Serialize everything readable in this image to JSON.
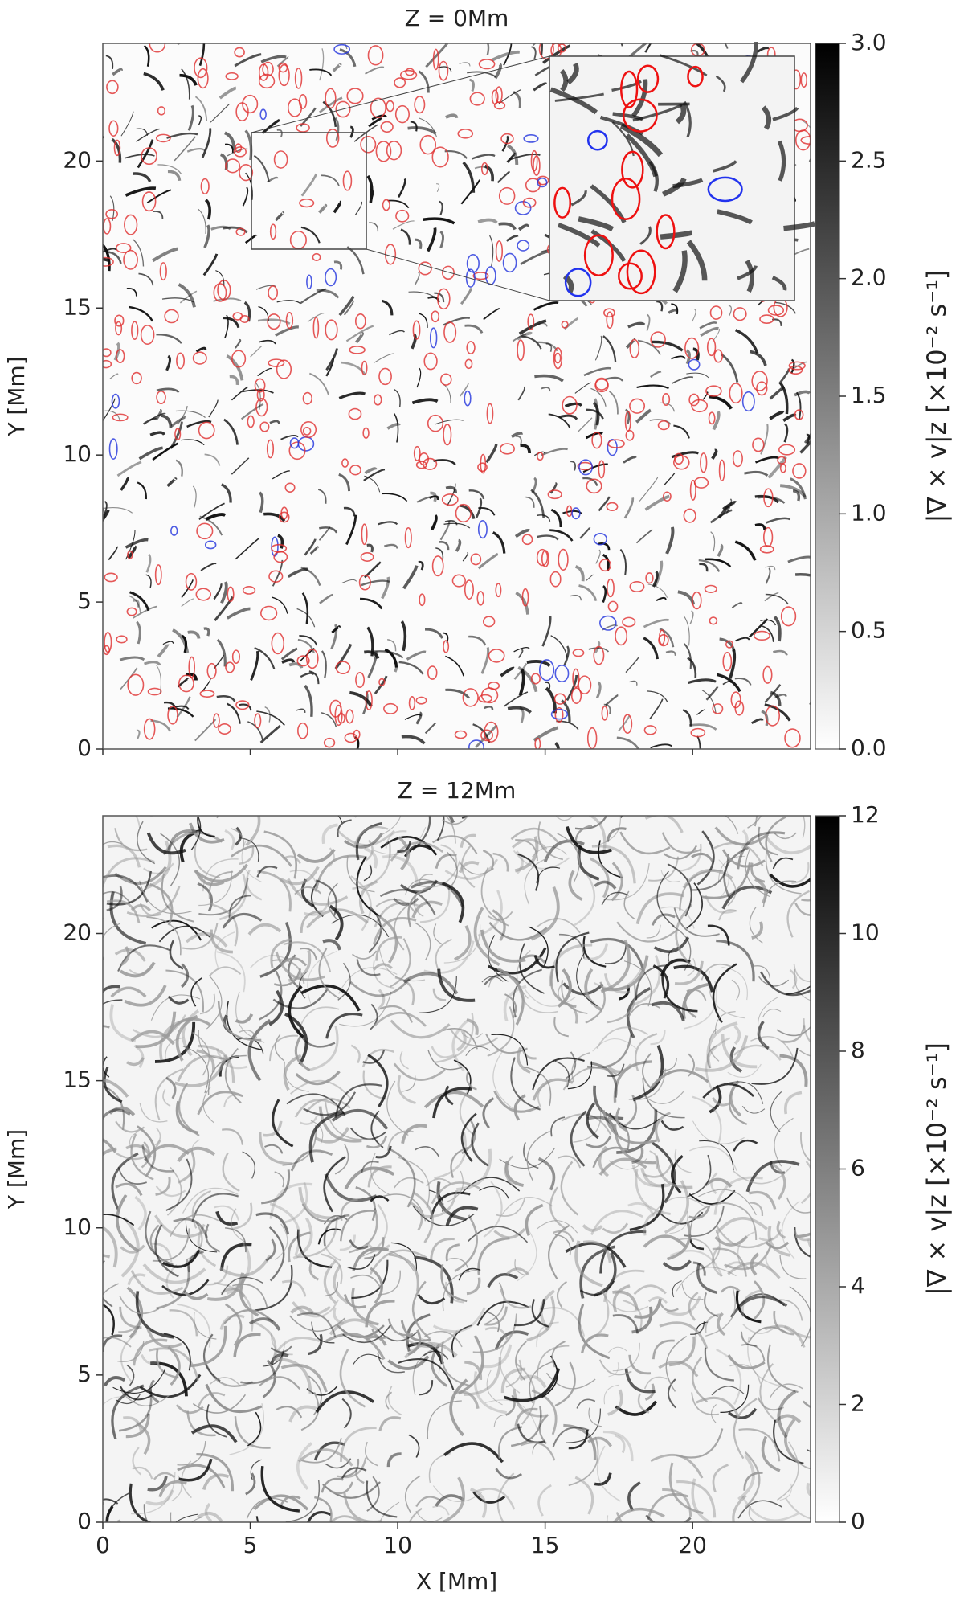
{
  "chart_data": [
    {
      "type": "heatmap",
      "title": "Z = 0Mm",
      "ylabel": "Y [Mm]",
      "xlim": [
        0,
        24
      ],
      "ylim": [
        0,
        24
      ],
      "xticks": [
        0,
        5,
        10,
        15,
        20
      ],
      "yticks": [
        0,
        5,
        10,
        15,
        20
      ],
      "colorbar": {
        "label": "|∇ × v|z [×10⁻² s⁻¹]",
        "lim": [
          0,
          3
        ],
        "ticks": [
          {
            "value": 0,
            "label": "0.0"
          },
          {
            "value": 0.5,
            "label": "0.5"
          },
          {
            "value": 1,
            "label": "1.0"
          },
          {
            "value": 1.5,
            "label": "1.5"
          },
          {
            "value": 2,
            "label": "2.0"
          },
          {
            "value": 2.5,
            "label": "2.5"
          },
          {
            "value": 3,
            "label": "3.0"
          }
        ]
      }
    },
    {
      "type": "heatmap",
      "title": "Z = 12Mm",
      "xlabel": "X [Mm]",
      "ylabel": "Y [Mm]",
      "xlim": [
        0,
        24
      ],
      "ylim": [
        0,
        24
      ],
      "xticks": [
        0,
        5,
        10,
        15,
        20
      ],
      "yticks": [
        0,
        5,
        10,
        15,
        20
      ],
      "colorbar": {
        "label": "|∇ × v|z [×10⁻² s⁻¹]",
        "lim": [
          0,
          12
        ],
        "ticks": [
          0,
          2,
          4,
          6,
          8,
          10,
          12
        ]
      }
    }
  ]
}
